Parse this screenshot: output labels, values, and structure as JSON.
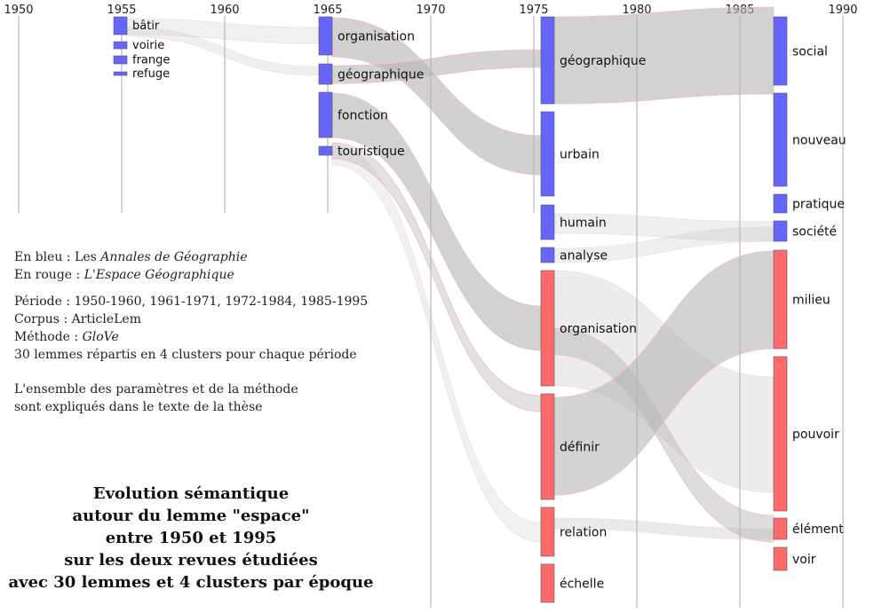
{
  "timeline": {
    "years": [
      "1950",
      "1955",
      "1960",
      "1965",
      "1970",
      "1975",
      "1980",
      "1985",
      "1990"
    ]
  },
  "colors": {
    "annales": "#6666ff",
    "espace_geographique": "#ff6b6b",
    "flow": "#b4b4b4",
    "flow_border": "#f4b8b8",
    "gridline": "#aaaaaa"
  },
  "periods": [
    {
      "id": "p1",
      "nodes": [
        {
          "id": "p1-batir",
          "label": "bâtir",
          "revue": "annales"
        },
        {
          "id": "p1-voirie",
          "label": "voirie",
          "revue": "annales"
        },
        {
          "id": "p1-frange",
          "label": "frange",
          "revue": "annales"
        },
        {
          "id": "p1-refuge",
          "label": "refuge",
          "revue": "annales"
        }
      ]
    },
    {
      "id": "p2",
      "nodes": [
        {
          "id": "p2-organisation",
          "label": "organisation",
          "revue": "annales"
        },
        {
          "id": "p2-geographique",
          "label": "géographique",
          "revue": "annales"
        },
        {
          "id": "p2-fonction",
          "label": "fonction",
          "revue": "annales"
        },
        {
          "id": "p2-touristique",
          "label": "touristique",
          "revue": "annales"
        }
      ]
    },
    {
      "id": "p3",
      "nodes": [
        {
          "id": "p3-geographique",
          "label": "géographique",
          "revue": "annales"
        },
        {
          "id": "p3-urbain",
          "label": "urbain",
          "revue": "annales"
        },
        {
          "id": "p3-humain",
          "label": "humain",
          "revue": "annales"
        },
        {
          "id": "p3-analyse",
          "label": "analyse",
          "revue": "annales"
        },
        {
          "id": "p3-organisation",
          "label": "organisation",
          "revue": "espace"
        },
        {
          "id": "p3-definir",
          "label": "définir",
          "revue": "espace"
        },
        {
          "id": "p3-relation",
          "label": "relation",
          "revue": "espace"
        },
        {
          "id": "p3-echelle",
          "label": "échelle",
          "revue": "espace"
        }
      ]
    },
    {
      "id": "p4",
      "nodes": [
        {
          "id": "p4-social",
          "label": "social",
          "revue": "annales"
        },
        {
          "id": "p4-nouveau",
          "label": "nouveau",
          "revue": "annales"
        },
        {
          "id": "p4-pratique",
          "label": "pratique",
          "revue": "annales"
        },
        {
          "id": "p4-societe",
          "label": "société",
          "revue": "annales"
        },
        {
          "id": "p4-milieu",
          "label": "milieu",
          "revue": "espace"
        },
        {
          "id": "p4-pouvoir",
          "label": "pouvoir",
          "revue": "espace"
        },
        {
          "id": "p4-element",
          "label": "élément",
          "revue": "espace"
        },
        {
          "id": "p4-voir",
          "label": "voir",
          "revue": "espace"
        }
      ]
    }
  ],
  "legend": {
    "line1_prefix": "En bleu : Les ",
    "line1_journal": "Annales de Géographie",
    "line2_prefix": "En rouge : ",
    "line2_journal": "L'Espace Géographique",
    "periode": "Période : 1950-1960, 1961-1971, 1972-1984, 1985-1995",
    "corpus": "Corpus : ArticleLem",
    "methode_prefix": "Méthode : ",
    "methode_name": "GloVe",
    "lemmes": "30 lemmes répartis en  4 clusters pour chaque période",
    "parametres_1": "L'ensemble des paramètres et de la méthode",
    "parametres_2": "sont expliqués dans le texte de la thèse"
  },
  "title": {
    "line1": "Evolution sémantique",
    "line2": "autour du lemme \"espace\"",
    "line3": "entre 1950 et 1995",
    "line4": "sur les deux revues étudiées",
    "line5": "avec 30 lemmes et 4 clusters par époque"
  }
}
